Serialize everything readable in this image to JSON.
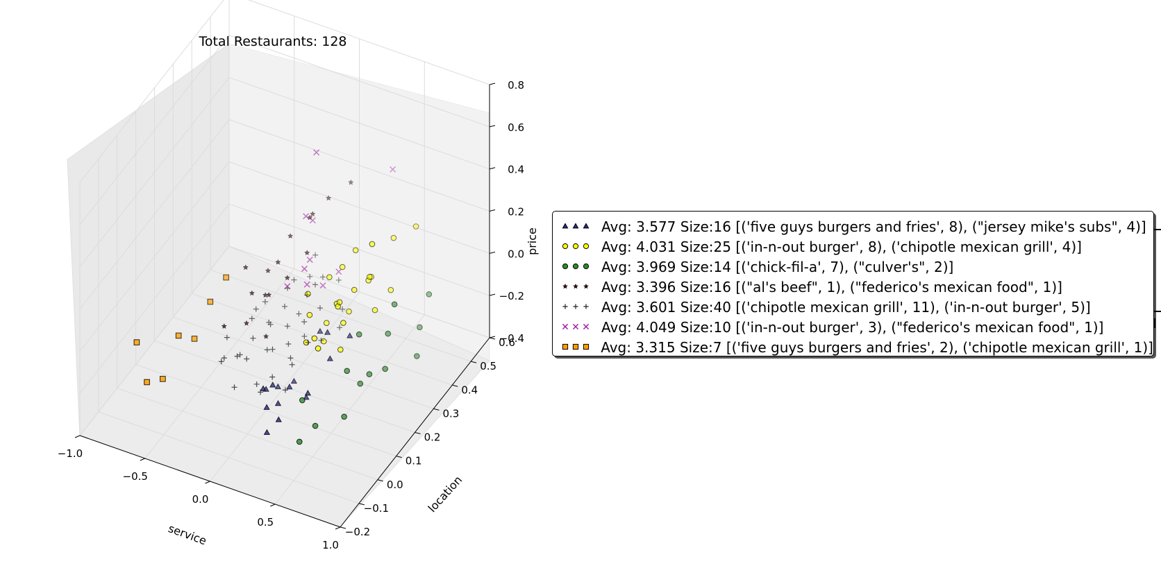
{
  "chart_data": {
    "type": "scatter",
    "projection": "3d",
    "title": "Total Restaurants: 128",
    "xlabel": "service",
    "ylabel": "location",
    "zlabel": "price",
    "xlim": [
      -1.0,
      1.0
    ],
    "ylim": [
      -0.2,
      0.6
    ],
    "zlim": [
      -0.4,
      0.8
    ],
    "x_ticks": [
      "−1.0",
      "−0.5",
      "0.0",
      "0.5",
      "1.0"
    ],
    "y_ticks": [
      "−0.2",
      "−0.1",
      "0.0",
      "0.1",
      "0.2",
      "0.3",
      "0.4",
      "0.5",
      "0.6"
    ],
    "z_ticks": [
      "−0.4",
      "−0.2",
      "0.0",
      "0.2",
      "0.4",
      "0.6",
      "0.8"
    ],
    "grid": true,
    "legend_position": "right",
    "series": [
      {
        "label": "Avg: 3.577 Size:16 [('five guys burgers and fries', 8), (\"jersey mike's subs\", 4)]",
        "marker": "triangle",
        "color": "#2b2b8f",
        "points": [
          [
            0.05,
            0.05,
            -0.23
          ],
          [
            0.08,
            0.08,
            -0.24
          ],
          [
            0.12,
            0.02,
            -0.27
          ],
          [
            0.15,
            0.06,
            -0.29
          ],
          [
            0.18,
            0.1,
            -0.25
          ],
          [
            0.24,
            0.0,
            -0.28
          ],
          [
            0.28,
            0.12,
            -0.3
          ],
          [
            0.02,
            0.15,
            -0.34
          ],
          [
            0.1,
            0.18,
            -0.33
          ],
          [
            0.35,
            0.08,
            -0.22
          ],
          [
            0.42,
            0.15,
            -0.12
          ],
          [
            0.3,
            0.22,
            -0.1
          ],
          [
            0.0,
            0.1,
            -0.3
          ],
          [
            0.2,
            0.25,
            -0.15
          ],
          [
            0.5,
            0.2,
            -0.05
          ],
          [
            0.15,
            0.0,
            -0.36
          ]
        ]
      },
      {
        "label": "Avg: 4.031 Size:25 [('in-n-out burger', 8), ('chipotle mexican grill', 4)]",
        "marker": "circle",
        "color": "#ffff00",
        "points": [
          [
            0.6,
            0.25,
            0.35
          ],
          [
            0.55,
            0.4,
            0.2
          ],
          [
            0.5,
            0.3,
            0.1
          ],
          [
            0.45,
            0.35,
            0.05
          ],
          [
            0.4,
            0.2,
            0.08
          ],
          [
            0.35,
            0.25,
            0.02
          ],
          [
            0.3,
            0.3,
            0.12
          ],
          [
            0.25,
            0.15,
            0.15
          ],
          [
            0.2,
            0.3,
            0.05
          ],
          [
            0.45,
            0.2,
            0.0
          ],
          [
            0.4,
            0.1,
            -0.02
          ],
          [
            0.3,
            0.15,
            -0.05
          ],
          [
            0.35,
            0.3,
            -0.08
          ],
          [
            0.5,
            0.15,
            -0.06
          ],
          [
            0.55,
            0.3,
            -0.03
          ],
          [
            0.6,
            0.35,
            0.02
          ],
          [
            0.25,
            0.25,
            -0.1
          ],
          [
            0.3,
            0.2,
            -0.12
          ],
          [
            0.38,
            0.22,
            0.04
          ],
          [
            0.42,
            0.28,
            0.06
          ],
          [
            0.48,
            0.32,
            0.09
          ],
          [
            0.22,
            0.18,
            0.01
          ],
          [
            0.28,
            0.12,
            -0.04
          ],
          [
            0.33,
            0.35,
            0.15
          ],
          [
            0.65,
            0.45,
            0.22
          ]
        ]
      },
      {
        "label": "Avg: 3.969 Size:14 [('chick-fil-a', 7), (\"culver's\", 2)]",
        "marker": "circle",
        "color": "#2e8b2e",
        "points": [
          [
            0.7,
            0.3,
            0.03
          ],
          [
            0.75,
            0.4,
            -0.18
          ],
          [
            0.65,
            0.2,
            -0.2
          ],
          [
            0.8,
            0.35,
            -0.25
          ],
          [
            0.55,
            0.15,
            -0.15
          ],
          [
            0.6,
            0.1,
            -0.3
          ],
          [
            0.45,
            0.05,
            -0.32
          ],
          [
            0.4,
            0.0,
            -0.35
          ],
          [
            0.5,
            0.25,
            -0.1
          ],
          [
            0.65,
            0.3,
            -0.12
          ],
          [
            0.7,
            0.25,
            -0.22
          ],
          [
            0.58,
            0.2,
            -0.26
          ],
          [
            0.35,
            0.05,
            -0.22
          ],
          [
            0.75,
            0.45,
            -0.08
          ]
        ]
      },
      {
        "label": "Avg: 3.396 Size:16 [(\"al's beef\", 1), (\"federico's mexican food\", 1)]",
        "marker": "star",
        "color": "#2a0f0f",
        "points": [
          [
            -0.3,
            0.2,
            0.1
          ],
          [
            -0.2,
            0.25,
            0.05
          ],
          [
            -0.1,
            0.3,
            0.18
          ],
          [
            0.0,
            0.35,
            0.25
          ],
          [
            0.05,
            0.3,
            0.3
          ],
          [
            -0.15,
            0.1,
            -0.02
          ],
          [
            -0.05,
            0.15,
            0.08
          ],
          [
            0.02,
            0.2,
            0.12
          ],
          [
            0.1,
            0.25,
            0.2
          ],
          [
            -0.25,
            0.05,
            0.0
          ],
          [
            -0.12,
            0.18,
            0.03
          ],
          [
            0.05,
            0.4,
            0.28
          ],
          [
            0.15,
            0.45,
            0.32
          ],
          [
            -0.08,
            0.22,
            0.15
          ],
          [
            0.0,
            0.1,
            -0.05
          ],
          [
            -0.18,
            0.15,
            0.06
          ]
        ]
      },
      {
        "label": "Avg: 3.601 Size:40 [('chipotle mexican grill', 11), ('in-n-out burger', 5)]",
        "marker": "plus",
        "color": "#222222",
        "points": [
          [
            -0.2,
            0.0,
            -0.1
          ],
          [
            -0.15,
            0.05,
            -0.12
          ],
          [
            -0.1,
            0.1,
            -0.08
          ],
          [
            -0.05,
            0.15,
            -0.05
          ],
          [
            0.0,
            0.2,
            -0.02
          ],
          [
            0.05,
            0.1,
            -0.1
          ],
          [
            0.1,
            0.15,
            -0.12
          ],
          [
            0.15,
            0.2,
            -0.06
          ],
          [
            0.2,
            0.25,
            -0.04
          ],
          [
            -0.25,
            0.05,
            -0.15
          ],
          [
            -0.2,
            0.1,
            -0.18
          ],
          [
            -0.1,
            0.0,
            -0.2
          ],
          [
            0.0,
            0.05,
            -0.22
          ],
          [
            0.1,
            0.0,
            -0.18
          ],
          [
            0.2,
            0.1,
            -0.14
          ],
          [
            0.25,
            0.15,
            -0.08
          ],
          [
            -0.05,
            0.25,
            0.0
          ],
          [
            0.05,
            0.3,
            0.02
          ],
          [
            0.15,
            0.3,
            0.04
          ],
          [
            0.2,
            0.35,
            -0.02
          ],
          [
            0.3,
            0.3,
            -0.08
          ],
          [
            -0.3,
            0.1,
            -0.12
          ],
          [
            -0.15,
            0.2,
            -0.03
          ],
          [
            0.0,
            0.25,
            0.05
          ],
          [
            0.1,
            0.25,
            0.0
          ],
          [
            0.12,
            0.05,
            -0.16
          ],
          [
            -0.02,
            0.12,
            -0.14
          ],
          [
            -0.08,
            0.18,
            -0.1
          ],
          [
            0.08,
            0.22,
            -0.06
          ],
          [
            0.18,
            0.18,
            -0.1
          ],
          [
            0.22,
            0.05,
            -0.2
          ],
          [
            -0.18,
            0.15,
            -0.06
          ],
          [
            0.02,
            0.35,
            0.06
          ],
          [
            0.28,
            0.2,
            -0.12
          ],
          [
            -0.12,
            0.08,
            -0.16
          ],
          [
            0.05,
            0.18,
            -0.08
          ],
          [
            0.12,
            0.28,
            0.02
          ],
          [
            -0.22,
            0.2,
            -0.08
          ],
          [
            0.35,
            0.25,
            -0.1
          ],
          [
            0.16,
            0.12,
            -0.14
          ]
        ]
      },
      {
        "label": "Avg: 4.049 Size:10 [('in-n-out burger', 3), (\"federico's mexican food\", 1)]",
        "marker": "x",
        "color": "#a020a0",
        "points": [
          [
            0.1,
            0.3,
            0.62
          ],
          [
            0.4,
            0.5,
            0.38
          ],
          [
            0.02,
            0.3,
            0.3
          ],
          [
            0.0,
            0.35,
            0.22
          ],
          [
            0.05,
            0.3,
            0.1
          ],
          [
            0.1,
            0.25,
            0.05
          ],
          [
            0.15,
            0.3,
            0.0
          ],
          [
            0.2,
            0.35,
            0.02
          ],
          [
            0.02,
            0.2,
            0.08
          ],
          [
            0.08,
            0.25,
            0.12
          ]
        ]
      },
      {
        "label": "Avg: 3.315 Size:7 [('five guys burgers and fries', 2), ('chipotle mexican grill', 1)]",
        "marker": "square",
        "color": "#ff9f00",
        "points": [
          [
            -0.85,
            0.0,
            -0.15
          ],
          [
            -0.6,
            0.05,
            -0.12
          ],
          [
            -0.5,
            0.15,
            -0.05
          ],
          [
            -0.55,
            0.1,
            -0.18
          ],
          [
            -0.7,
            -0.05,
            -0.25
          ],
          [
            -0.65,
            0.0,
            -0.28
          ],
          [
            -0.45,
            0.2,
            0.02
          ]
        ]
      }
    ]
  },
  "legend_markers": {
    "triangle": "▲",
    "circle": "●",
    "star": "★",
    "plus": "+",
    "x": "×",
    "square": "■"
  }
}
